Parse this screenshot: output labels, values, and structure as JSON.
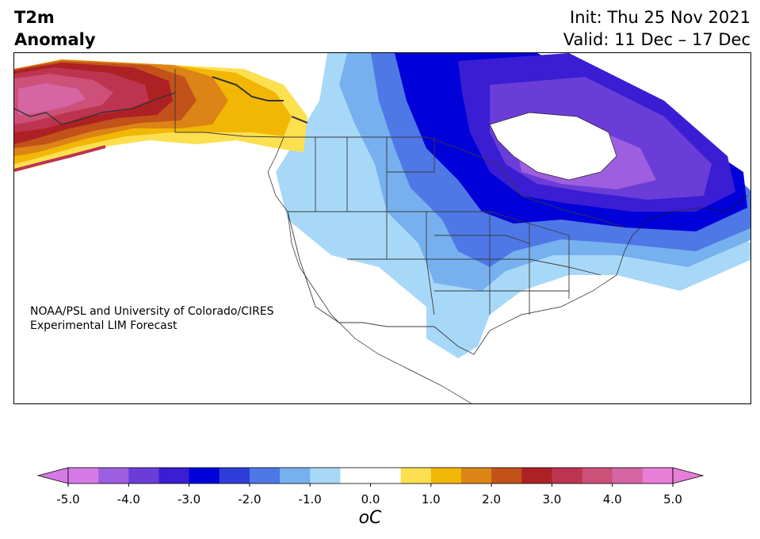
{
  "header": {
    "title_line1": "T2m",
    "title_line2": "Anomaly",
    "init_text": "Init: Thu 25 Nov 2021",
    "valid_text": "Valid: 11 Dec – 17 Dec"
  },
  "map": {
    "credit_line1": "NOAA/PSL and University of Colorado/CIRES",
    "credit_line2": "Experimental LIM Forecast",
    "regions": [
      {
        "id": "alaska-warm-anomaly",
        "level": 4.0
      },
      {
        "id": "hudson-bay-cold-anomaly",
        "level": -4.0
      },
      {
        "id": "great-lakes-cold-anomaly",
        "level": -2.5
      },
      {
        "id": "us-west-cool-anomaly",
        "level": -1.0
      }
    ]
  },
  "colorbar": {
    "unit": "oC",
    "ticks": [
      "-5.0",
      "-4.0",
      "-3.0",
      "-2.0",
      "-1.0",
      "0.0",
      "1.0",
      "2.0",
      "3.0",
      "4.0",
      "5.0"
    ],
    "low_extend_color": "#d57ae6",
    "high_extend_color": "#e77fd8",
    "colors": [
      "#d57ae6",
      "#9e5ee0",
      "#6a3dd8",
      "#3b1dd3",
      "#0000d8",
      "#2d3ed8",
      "#4e78e6",
      "#77b0ef",
      "#a8d8f8",
      "#ffffff",
      "#ffffff",
      "#fde050",
      "#f2b705",
      "#dc8415",
      "#c25219",
      "#ad2124",
      "#bd3450",
      "#cc5078",
      "#d665a4",
      "#e77fd8"
    ]
  }
}
